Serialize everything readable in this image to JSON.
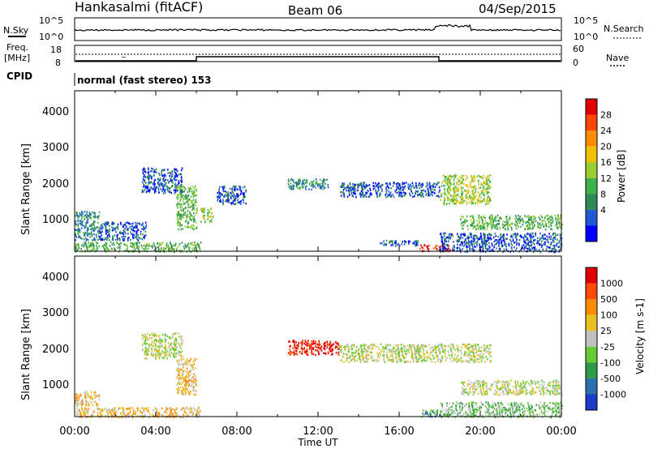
{
  "header": {
    "radar": "Hankasalmi (fitACF)",
    "beam": "Beam 06",
    "date": "04/Sep/2015"
  },
  "noise_panel": {
    "left_label": "N.Sky",
    "right_label": "N.Search",
    "ticks_left": [
      "10^5",
      "10^0"
    ],
    "ticks_right": [
      "10^5",
      "10^0"
    ]
  },
  "freq_panel": {
    "freq_label_line1": "Freq.",
    "freq_label_line2": "[MHz]",
    "freq_ticks": [
      "18",
      "8"
    ],
    "nave_label": "Nave",
    "nave_ticks": [
      "60",
      "0"
    ],
    "cpid_label": "CPID",
    "cpid_text": "normal (fast stereo) 153"
  },
  "x_axis": {
    "label": "Time UT",
    "ticks": [
      "00:00",
      "04:00",
      "08:00",
      "12:00",
      "16:00",
      "20:00",
      "00:00"
    ]
  },
  "power_panel": {
    "ylabel": "Slant Range [km]",
    "yticks": [
      "4000",
      "3000",
      "2000",
      "1000"
    ],
    "scale_label": "Power [dB]",
    "scale_ticks": [
      "28",
      "24",
      "20",
      "16",
      "12",
      "8",
      "4"
    ],
    "colors": [
      "#0000ff",
      "#1e5ad2",
      "#2e8b57",
      "#3cb44b",
      "#9acd32",
      "#f0c000",
      "#ff8c00",
      "#ff4500",
      "#e00000"
    ]
  },
  "velocity_panel": {
    "ylabel": "Slant Range [km]",
    "yticks": [
      "4000",
      "3000",
      "2000",
      "1000"
    ],
    "scale_label": "Velocity [m s-1]",
    "scale_ticks": [
      "1000",
      "500",
      "100",
      "25",
      "-25",
      "-100",
      "-500",
      "-1000"
    ],
    "colors": [
      "#1a3cc8",
      "#2a6fb0",
      "#2e9b4a",
      "#66cc33",
      "#c0c0c0",
      "#e8c020",
      "#ff8c00",
      "#ff4a00",
      "#e00000"
    ]
  },
  "chart_data": {
    "type": "heatmap",
    "x_range_hours": [
      0,
      24
    ],
    "y_range_km": [
      180,
      4600
    ],
    "power_regions": [
      {
        "t0": 0.0,
        "t1": 6.2,
        "r0": 180,
        "r1": 450,
        "level": 3
      },
      {
        "t0": 0.0,
        "t1": 1.2,
        "r0": 500,
        "r1": 1300,
        "level": 2
      },
      {
        "t0": 1.2,
        "t1": 3.5,
        "r0": 500,
        "r1": 1000,
        "level": 1
      },
      {
        "t0": 3.3,
        "t1": 5.3,
        "r0": 1800,
        "r1": 2500,
        "level": 1
      },
      {
        "t0": 5.0,
        "t1": 6.0,
        "r0": 800,
        "r1": 2000,
        "level": 3
      },
      {
        "t0": 6.2,
        "t1": 6.8,
        "r0": 1000,
        "r1": 1400,
        "level": 4
      },
      {
        "t0": 7.0,
        "t1": 8.5,
        "r0": 1500,
        "r1": 2000,
        "level": 1
      },
      {
        "t0": 10.5,
        "t1": 12.5,
        "r0": 1900,
        "r1": 2200,
        "level": 2
      },
      {
        "t0": 13.0,
        "t1": 18.0,
        "r0": 1700,
        "r1": 2100,
        "level": 1
      },
      {
        "t0": 15.0,
        "t1": 17.0,
        "r0": 350,
        "r1": 500,
        "level": 1
      },
      {
        "t0": 17.0,
        "t1": 18.5,
        "r0": 200,
        "r1": 380,
        "level": 8
      },
      {
        "t0": 18.0,
        "t1": 20.5,
        "r0": 1500,
        "r1": 2300,
        "level": 4
      },
      {
        "t0": 19.0,
        "t1": 24.0,
        "r0": 800,
        "r1": 1200,
        "level": 3
      },
      {
        "t0": 18.0,
        "t1": 24.0,
        "r0": 180,
        "r1": 700,
        "level": 1
      }
    ],
    "velocity_regions": [
      {
        "t0": 0.0,
        "t1": 6.2,
        "r0": 180,
        "r1": 450,
        "level": 5
      },
      {
        "t0": 0.0,
        "t1": 1.2,
        "r0": 500,
        "r1": 900,
        "level": 5
      },
      {
        "t0": 3.3,
        "t1": 5.3,
        "r0": 1800,
        "r1": 2500,
        "level": 4
      },
      {
        "t0": 5.0,
        "t1": 6.0,
        "r0": 800,
        "r1": 1800,
        "level": 5
      },
      {
        "t0": 10.5,
        "t1": 13.0,
        "r0": 1900,
        "r1": 2300,
        "level": 8
      },
      {
        "t0": 13.0,
        "t1": 20.5,
        "r0": 1700,
        "r1": 2200,
        "level": 4
      },
      {
        "t0": 17.0,
        "t1": 18.5,
        "r0": 200,
        "r1": 380,
        "level": 2
      },
      {
        "t0": 19.0,
        "t1": 24.0,
        "r0": 800,
        "r1": 1200,
        "level": 4
      },
      {
        "t0": 18.0,
        "t1": 24.0,
        "r0": 180,
        "r1": 600,
        "level": 3
      }
    ]
  }
}
